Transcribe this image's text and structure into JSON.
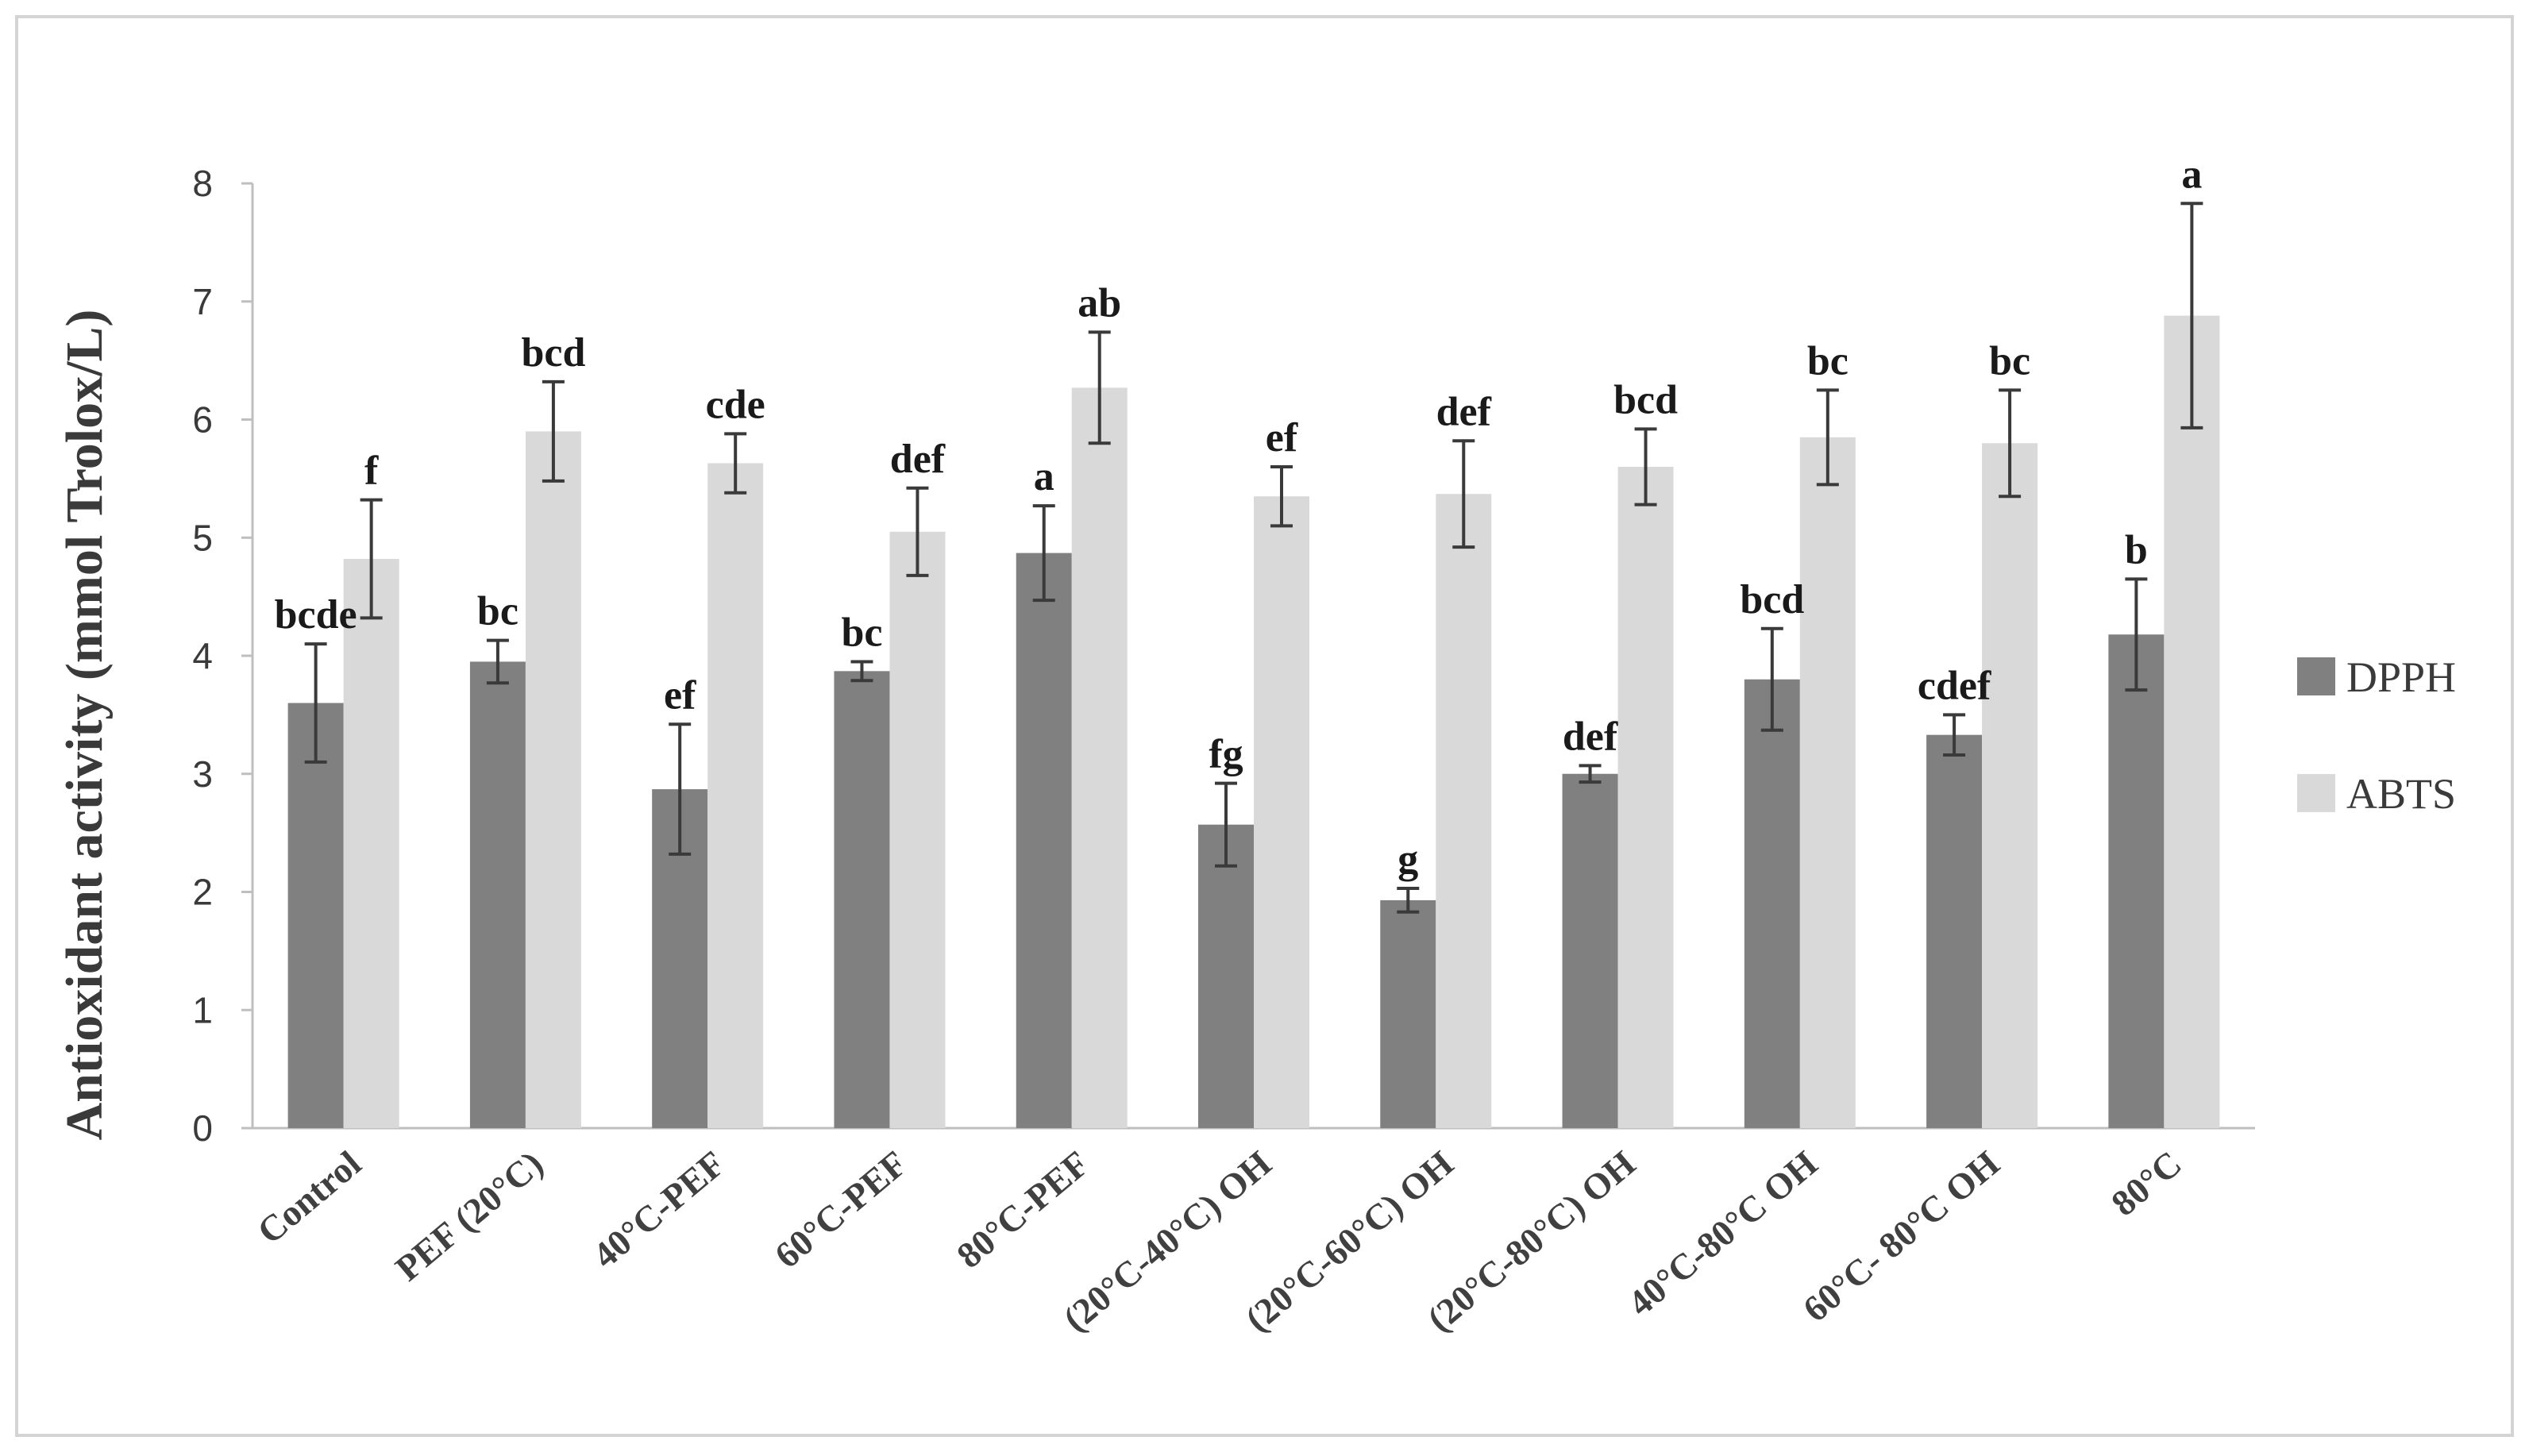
{
  "chart_data": {
    "type": "bar",
    "ylabel": "Antioxidant  activity (mmol Trolox/L)",
    "ylim": [
      0,
      8
    ],
    "yticks": [
      0,
      1,
      2,
      3,
      4,
      5,
      6,
      7,
      8
    ],
    "grid": false,
    "legend_position": "right",
    "error_bars": true,
    "categories": [
      "Control",
      "PEF (20°C)",
      "40°C-PEF",
      "60°C-PEF",
      "80°C-PEF",
      "(20°C-40°C) OH",
      "(20°C-60°C) OH",
      "(20°C-80°C) OH",
      "40°C-80°C OH",
      "60°C- 80°C OH",
      "80°C"
    ],
    "series": [
      {
        "name": "DPPH",
        "color": "#808080",
        "values": [
          3.6,
          3.95,
          2.87,
          3.87,
          4.87,
          2.57,
          1.93,
          3.0,
          3.8,
          3.33,
          4.18
        ],
        "errors": [
          0.5,
          0.18,
          0.55,
          0.08,
          0.4,
          0.35,
          0.1,
          0.07,
          0.43,
          0.17,
          0.47
        ],
        "letters": [
          "bcde",
          "bc",
          "ef",
          "bc",
          "a",
          "fg",
          "g",
          "def",
          "bcd",
          "cdef",
          "b"
        ]
      },
      {
        "name": "ABTS",
        "color": "#d9d9d9",
        "values": [
          4.82,
          5.9,
          5.63,
          5.05,
          6.27,
          5.35,
          5.37,
          5.6,
          5.85,
          5.8,
          6.88
        ],
        "errors": [
          0.5,
          0.42,
          0.25,
          0.37,
          0.47,
          0.25,
          0.45,
          0.32,
          0.4,
          0.45,
          0.95
        ],
        "letters": [
          "f",
          "bcd",
          "cde",
          "def",
          "ab",
          "ef",
          "def",
          "bcd",
          "bc",
          "bc",
          "a"
        ]
      }
    ]
  }
}
